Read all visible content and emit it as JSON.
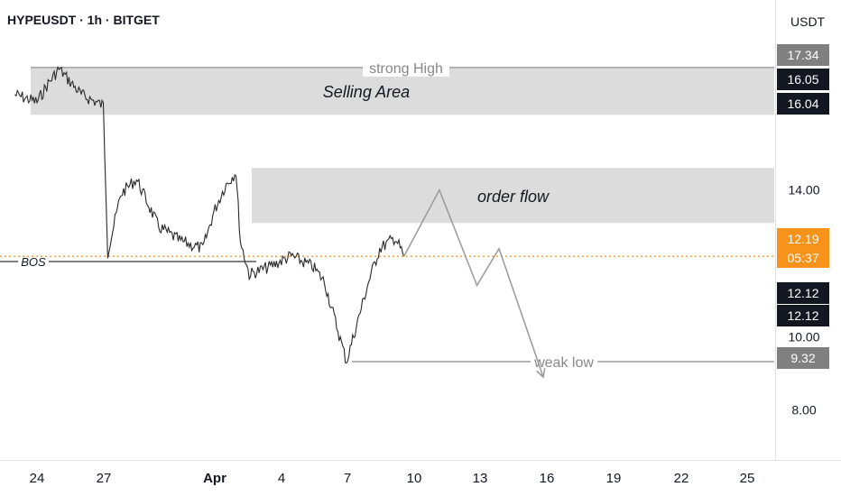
{
  "header": {
    "title": "HYPEUSDT · 1h · BITGET",
    "currency": "USDT"
  },
  "chart_data": {
    "type": "line",
    "symbol": "HYPEUSDT",
    "timeframe": "1h",
    "exchange": "BITGET",
    "ylim": [
      6.64,
      19.18
    ],
    "price_axis_ticks": [
      "14.00",
      "10.00",
      "8.00"
    ],
    "time_axis_ticks": [
      "24",
      "27",
      "Apr",
      "4",
      "7",
      "10",
      "13",
      "16",
      "19",
      "22",
      "25"
    ],
    "price_labels": [
      {
        "value": "17.34",
        "style": "grey"
      },
      {
        "value": "16.05",
        "style": "dark"
      },
      {
        "value": "16.04",
        "style": "dark"
      },
      {
        "value": "12.19",
        "sub": "05:37",
        "style": "orange"
      },
      {
        "value": "12.12",
        "style": "dark"
      },
      {
        "value": "12.12",
        "style": "dark"
      },
      {
        "value": "9.32",
        "style": "grey"
      }
    ],
    "zones": [
      {
        "label": "Selling Area",
        "top": 17.34,
        "bottom": 16.05
      },
      {
        "label": "order flow",
        "top": 14.6,
        "bottom": 13.1
      }
    ],
    "levels": [
      {
        "label": "strong High",
        "value": 17.34
      },
      {
        "label": "BOS",
        "value": 12.05
      },
      {
        "label": "weak low",
        "value": 9.32
      }
    ],
    "current_price": 12.19,
    "price_series": [
      {
        "x": "Mar 23",
        "y": 16.6
      },
      {
        "x": "Mar 24",
        "y": 16.4
      },
      {
        "x": "Mar 24.5",
        "y": 16.9
      },
      {
        "x": "Mar 25",
        "y": 17.3
      },
      {
        "x": "Mar 26",
        "y": 16.6
      },
      {
        "x": "Mar 27",
        "y": 16.3
      },
      {
        "x": "Mar 27.2",
        "y": 12.3
      },
      {
        "x": "Mar 27.8",
        "y": 13.9
      },
      {
        "x": "Mar 28.5",
        "y": 14.3
      },
      {
        "x": "Mar 29.5",
        "y": 13.0
      },
      {
        "x": "Mar 30.5",
        "y": 12.6
      },
      {
        "x": "Mar 31.5",
        "y": 12.4
      },
      {
        "x": "Apr 1",
        "y": 13.4
      },
      {
        "x": "Apr 1.5",
        "y": 14.1
      },
      {
        "x": "Apr 2",
        "y": 14.5
      },
      {
        "x": "Apr 2.2",
        "y": 12.6
      },
      {
        "x": "Apr 2.6",
        "y": 11.7
      },
      {
        "x": "Apr 3.5",
        "y": 11.9
      },
      {
        "x": "Apr 4.5",
        "y": 12.2
      },
      {
        "x": "Apr 5.5",
        "y": 11.9
      },
      {
        "x": "Apr 6",
        "y": 11.5
      },
      {
        "x": "Apr 7",
        "y": 9.32
      },
      {
        "x": "Apr 8",
        "y": 11.5
      },
      {
        "x": "Apr 8.5",
        "y": 12.4
      },
      {
        "x": "Apr 9.2",
        "y": 12.7
      },
      {
        "x": "Apr 9.6",
        "y": 12.19
      }
    ],
    "projection": [
      {
        "x": "Apr 9.6",
        "y": 12.19
      },
      {
        "x": "Apr 11.2",
        "y": 14.0
      },
      {
        "x": "Apr 12.9",
        "y": 11.4
      },
      {
        "x": "Apr 13.9",
        "y": 12.4
      },
      {
        "x": "Apr 15.9",
        "y": 8.9
      }
    ]
  }
}
